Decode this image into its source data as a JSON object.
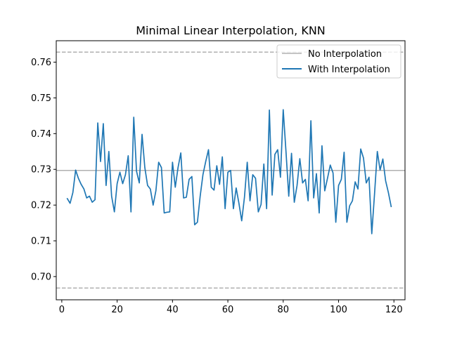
{
  "chart_data": {
    "type": "line",
    "title": "Minimal Linear Interpolation, KNN",
    "xlabel": "",
    "ylabel": "",
    "xlim": [
      -2,
      124
    ],
    "ylim": [
      0.6935,
      0.766
    ],
    "x_ticks": [
      0,
      20,
      40,
      60,
      80,
      100,
      120
    ],
    "x_tick_labels": [
      "0",
      "20",
      "40",
      "60",
      "80",
      "100",
      "120"
    ],
    "y_ticks": [
      0.7,
      0.71,
      0.72,
      0.73,
      0.74,
      0.75,
      0.76
    ],
    "y_tick_labels": [
      "0.70",
      "0.71",
      "0.72",
      "0.73",
      "0.74",
      "0.75",
      "0.76"
    ],
    "grid": false,
    "legend_position": "top-right",
    "reference_lines": [
      {
        "y": 0.7628,
        "style": "dashed",
        "color": "#b0b0b0"
      },
      {
        "y": 0.7297,
        "style": "solid",
        "color": "#b0b0b0"
      },
      {
        "y": 0.6968,
        "style": "dashed",
        "color": "#b0b0b0"
      }
    ],
    "legend": [
      {
        "label": "No Interpolation",
        "color": "#b0b0b0"
      },
      {
        "label": "With Interpolation",
        "color": "#1f77b4"
      }
    ],
    "series": [
      {
        "name": "With Interpolation",
        "color": "#1f77b4",
        "x": [
          2,
          3,
          4,
          5,
          6,
          7,
          8,
          9,
          10,
          11,
          12,
          13,
          14,
          15,
          16,
          17,
          18,
          19,
          20,
          21,
          22,
          23,
          24,
          25,
          26,
          27,
          28,
          29,
          30,
          31,
          32,
          33,
          34,
          35,
          36,
          37,
          38,
          39,
          40,
          41,
          42,
          43,
          44,
          45,
          46,
          47,
          48,
          49,
          50,
          51,
          52,
          53,
          54,
          55,
          56,
          57,
          58,
          59,
          60,
          61,
          62,
          63,
          64,
          65,
          66,
          67,
          68,
          69,
          70,
          71,
          72,
          73,
          74,
          75,
          76,
          77,
          78,
          79,
          80,
          81,
          82,
          83,
          84,
          85,
          86,
          87,
          88,
          89,
          90,
          91,
          92,
          93,
          94,
          95,
          96,
          97,
          98,
          99,
          100,
          101,
          102,
          103,
          104,
          105,
          106,
          107,
          108,
          109,
          110,
          111,
          112,
          113,
          114,
          115,
          116,
          117,
          118,
          119
        ],
        "y": [
          0.7218,
          0.7205,
          0.7235,
          0.7298,
          0.7275,
          0.7258,
          0.7245,
          0.722,
          0.7225,
          0.7208,
          0.7215,
          0.743,
          0.7322,
          0.7428,
          0.7255,
          0.735,
          0.7225,
          0.7181,
          0.726,
          0.7292,
          0.726,
          0.7285,
          0.7338,
          0.7181,
          0.7446,
          0.7295,
          0.7262,
          0.7398,
          0.7305,
          0.7255,
          0.7245,
          0.72,
          0.724,
          0.732,
          0.7305,
          0.7178,
          0.718,
          0.7181,
          0.732,
          0.725,
          0.7305,
          0.7346,
          0.722,
          0.7222,
          0.7272,
          0.728,
          0.7145,
          0.7152,
          0.7225,
          0.7285,
          0.7322,
          0.7355,
          0.725,
          0.7242,
          0.731,
          0.7258,
          0.7335,
          0.719,
          0.7292,
          0.7297,
          0.719,
          0.7248,
          0.7205,
          0.7156,
          0.7222,
          0.732,
          0.7212,
          0.7285,
          0.7275,
          0.7181,
          0.7202,
          0.7315,
          0.719,
          0.7466,
          0.7228,
          0.7342,
          0.7355,
          0.7278,
          0.7467,
          0.735,
          0.7225,
          0.7345,
          0.7208,
          0.7255,
          0.733,
          0.7262,
          0.7272,
          0.7212,
          0.7436,
          0.722,
          0.7288,
          0.7178,
          0.7366,
          0.724,
          0.7275,
          0.7312,
          0.729,
          0.7152,
          0.7255,
          0.7272,
          0.7348,
          0.7152,
          0.7198,
          0.7212,
          0.7265,
          0.7245,
          0.7357,
          0.7332,
          0.7262,
          0.7278,
          0.712,
          0.7232,
          0.735,
          0.7298,
          0.7329,
          0.7268,
          0.7235,
          0.7196
        ]
      }
    ]
  }
}
